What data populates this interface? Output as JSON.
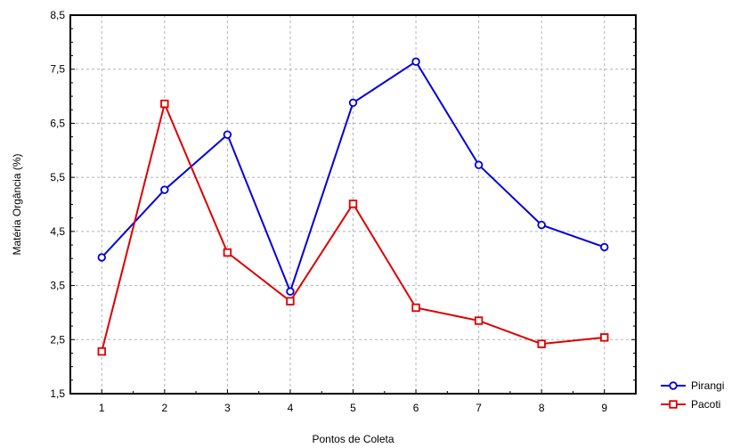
{
  "chart_data": {
    "type": "line",
    "xlabel": "Pontos de Coleta",
    "ylabel": "Matéria Orgância (%)",
    "categories": [
      "1",
      "2",
      "3",
      "4",
      "5",
      "6",
      "7",
      "8",
      "9"
    ],
    "x": [
      1,
      2,
      3,
      4,
      5,
      6,
      7,
      8,
      9
    ],
    "xlim": [
      0.5,
      9.5
    ],
    "ylim": [
      1.5,
      8.5
    ],
    "yticks": [
      1.5,
      2.5,
      3.5,
      4.5,
      5.5,
      6.5,
      7.5,
      8.5
    ],
    "ytick_labels": [
      "1,5",
      "2,5",
      "3,5",
      "4,5",
      "5,5",
      "6,5",
      "7,5",
      "8,5"
    ],
    "grid": true,
    "legend_position": "bottom-right, outside plot",
    "series": [
      {
        "name": "Pirangi",
        "color": "#0000dd",
        "marker": "circle",
        "values": [
          4.02,
          5.27,
          6.29,
          3.39,
          6.88,
          7.64,
          5.73,
          4.62,
          4.21
        ]
      },
      {
        "name": "Pacoti",
        "color": "#dd0000",
        "marker": "square",
        "values": [
          2.28,
          6.86,
          4.11,
          3.21,
          5.01,
          3.09,
          2.85,
          2.42,
          2.54
        ]
      }
    ]
  }
}
